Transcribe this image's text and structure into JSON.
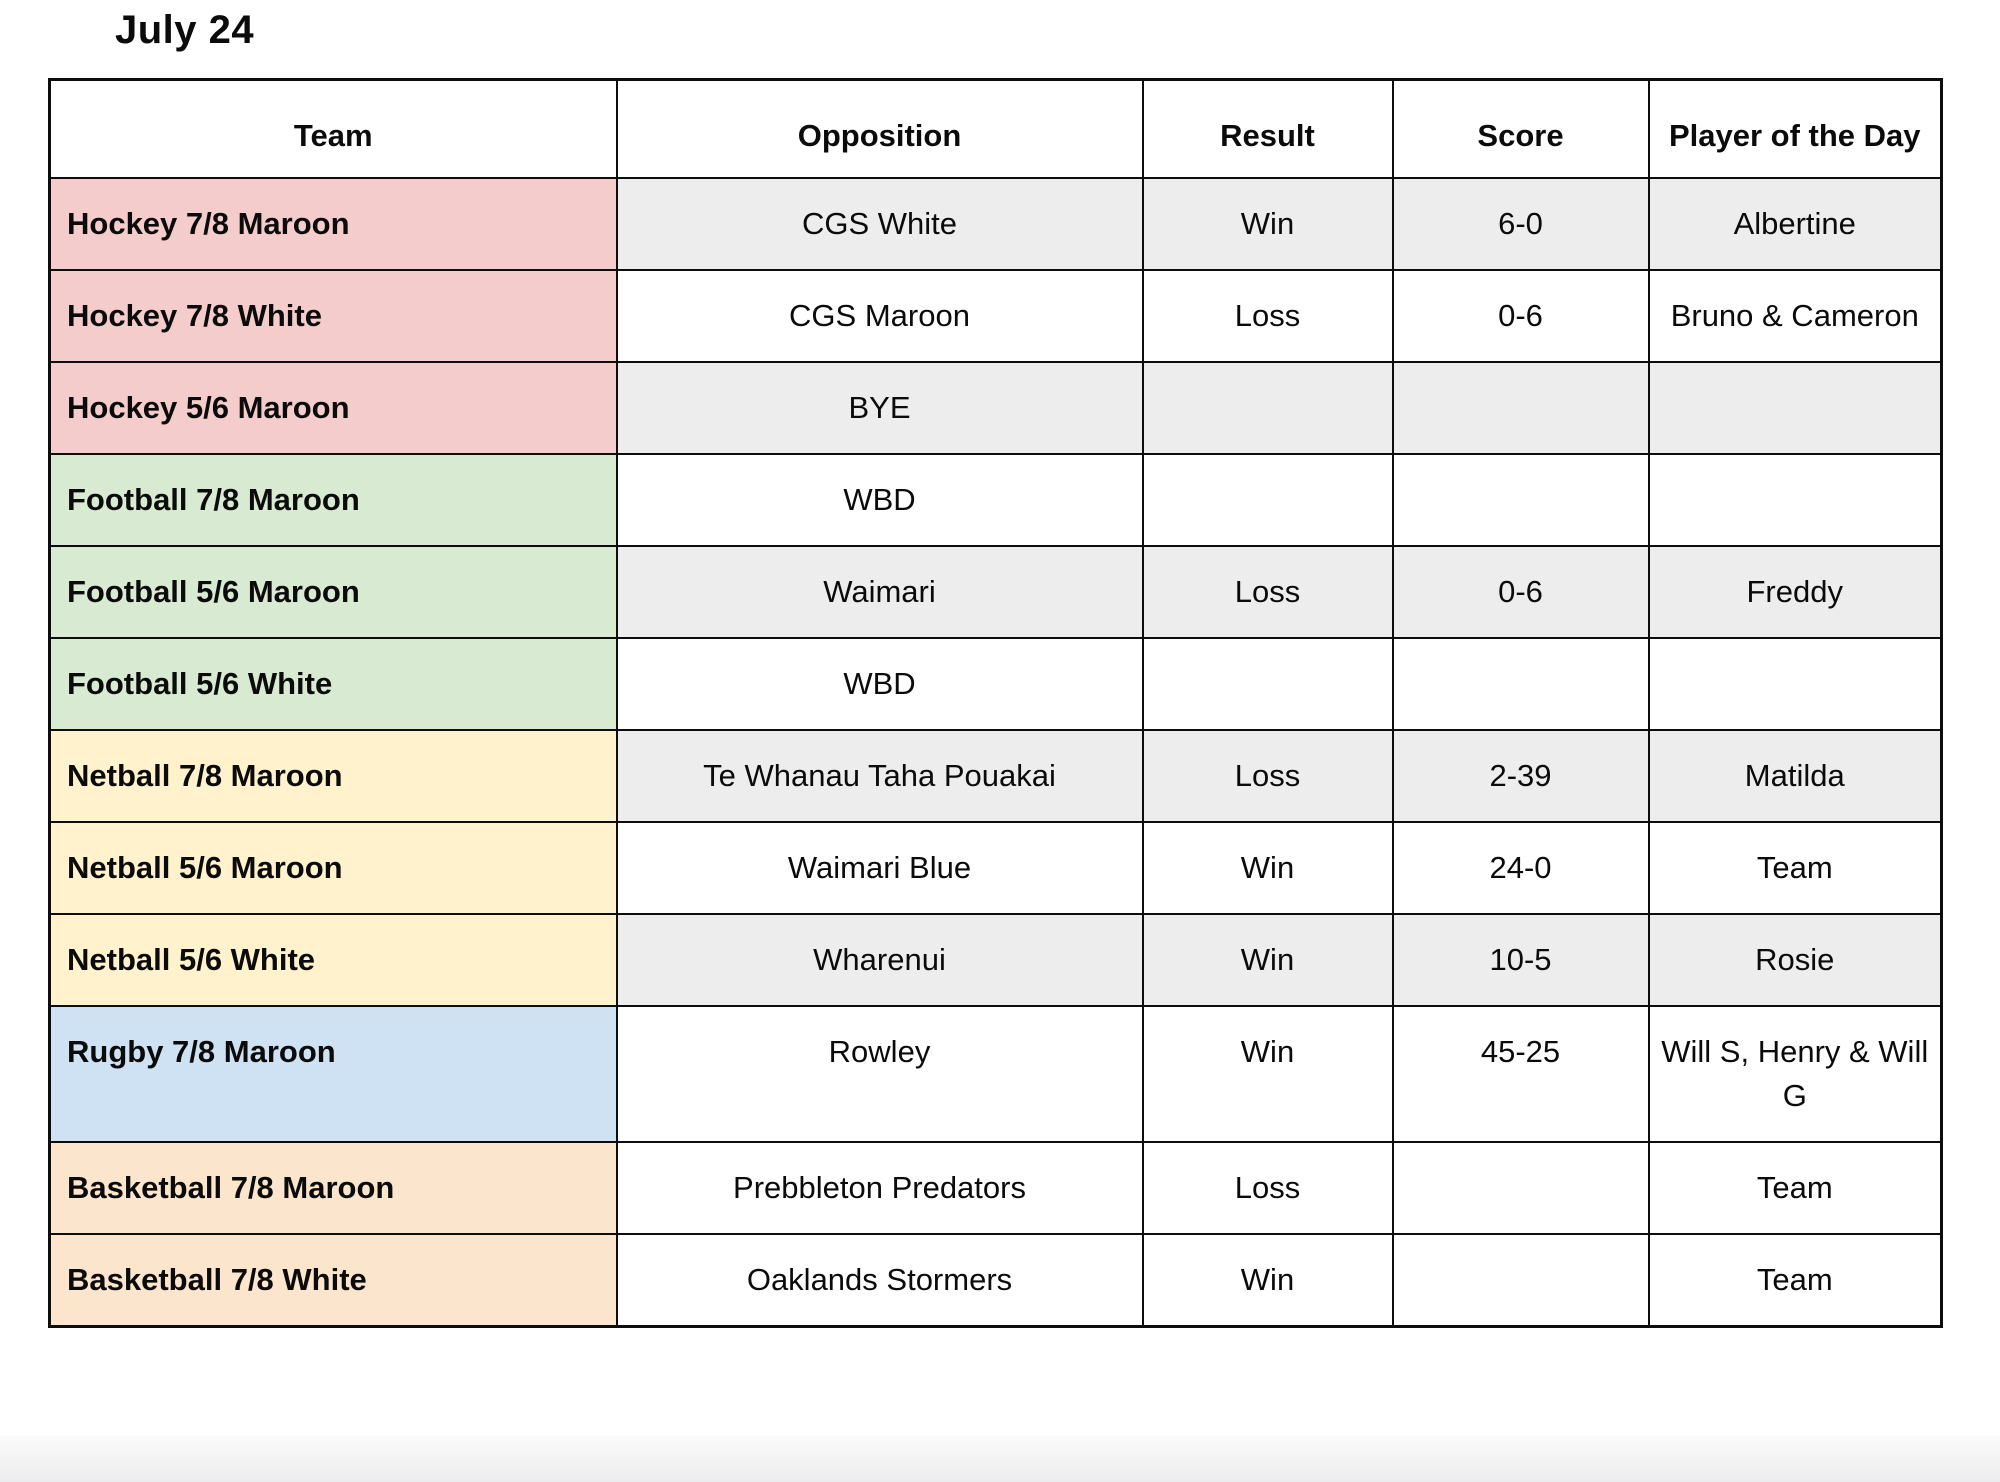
{
  "page": {
    "title": "July 24"
  },
  "colors": {
    "band_gray": "#ededed",
    "row_white": "#ffffff",
    "hockey_pink": "#f4cccc",
    "football_green": "#d9ead3",
    "netball_yellow": "#fff2cc",
    "rugby_blue": "#cfe2f3",
    "basketball_orange": "#fce5cd",
    "border_black": "#0d0d0d"
  },
  "table": {
    "headers": [
      "Team",
      "Opposition",
      "Result",
      "Score",
      "Player of the Day"
    ],
    "rows": [
      {
        "team": "Hockey 7/8 Maroon",
        "team_color": "#f4cccc",
        "opposition": "CGS White",
        "result": "Win",
        "score": "6-0",
        "player": "Albertine",
        "banded": true
      },
      {
        "team": "Hockey 7/8 White",
        "team_color": "#f4cccc",
        "opposition": "CGS Maroon",
        "result": "Loss",
        "score": "0-6",
        "player": "Bruno & Cameron",
        "banded": false
      },
      {
        "team": "Hockey 5/6 Maroon",
        "team_color": "#f4cccc",
        "opposition": "BYE",
        "result": "",
        "score": "",
        "player": "",
        "banded": true
      },
      {
        "team": "Football 7/8 Maroon",
        "team_color": "#d9ead3",
        "opposition": "WBD",
        "result": "",
        "score": "",
        "player": "",
        "banded": false
      },
      {
        "team": "Football 5/6 Maroon",
        "team_color": "#d9ead3",
        "opposition": "Waimari",
        "result": "Loss",
        "score": "0-6",
        "player": "Freddy",
        "banded": true
      },
      {
        "team": "Football 5/6 White",
        "team_color": "#d9ead3",
        "opposition": "WBD",
        "result": "",
        "score": "",
        "player": "",
        "banded": false
      },
      {
        "team": "Netball 7/8 Maroon",
        "team_color": "#fff2cc",
        "opposition": "Te Whanau Taha Pouakai",
        "result": "Loss",
        "score": "2-39",
        "player": "Matilda",
        "banded": true
      },
      {
        "team": "Netball 5/6 Maroon",
        "team_color": "#fff2cc",
        "opposition": "Waimari Blue",
        "result": "Win",
        "score": "24-0",
        "player": "Team",
        "banded": false
      },
      {
        "team": "Netball 5/6 White",
        "team_color": "#fff2cc",
        "opposition": "Wharenui",
        "result": "Win",
        "score": "10-5",
        "player": "Rosie",
        "banded": true
      },
      {
        "team": "Rugby 7/8 Maroon",
        "team_color": "#cfe2f3",
        "opposition": "Rowley",
        "result": "Win",
        "score": "45-25",
        "player": "Will S, Henry & Will G",
        "banded": false
      },
      {
        "team": "Basketball 7/8 Maroon",
        "team_color": "#fce5cd",
        "opposition": "Prebbleton Predators",
        "result": "Loss",
        "score": "",
        "player": "Team",
        "banded": false
      },
      {
        "team": "Basketball 7/8 White",
        "team_color": "#fce5cd",
        "opposition": "Oaklands Stormers",
        "result": "Win",
        "score": "",
        "player": "Team",
        "banded": false
      }
    ]
  }
}
